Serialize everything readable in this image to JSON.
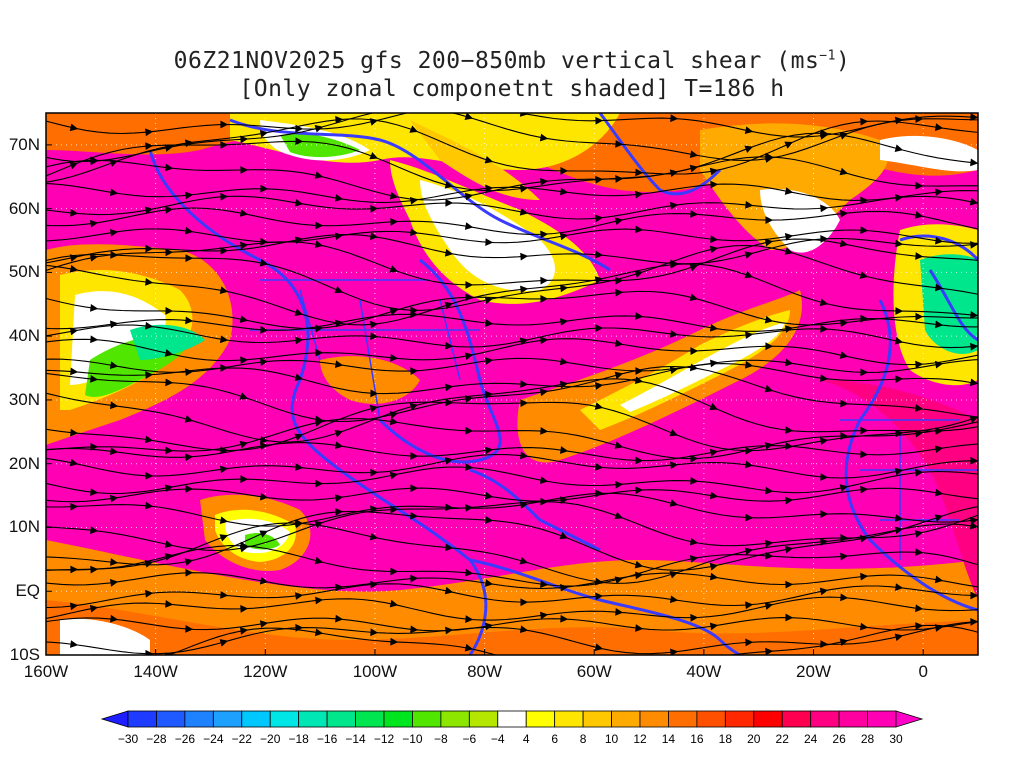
{
  "title": {
    "line1": "06Z21NOV2025 gfs 200−850mb vertical shear (ms",
    "line1_sup": "−1",
    "line1_end": ")",
    "line2": "[Only zonal componetnt shaded] T=186 h"
  },
  "map": {
    "lon_range": [
      -160,
      10
    ],
    "lat_range": [
      -10,
      75
    ],
    "lat_labels": [
      "70N",
      "60N",
      "50N",
      "40N",
      "30N",
      "20N",
      "10N",
      "EQ",
      "10S"
    ],
    "lat_values": [
      70,
      60,
      50,
      40,
      30,
      20,
      10,
      0,
      -10
    ],
    "lon_labels": [
      "160W",
      "140W",
      "120W",
      "100W",
      "80W",
      "60W",
      "40W",
      "20W",
      "0"
    ],
    "lon_values": [
      -160,
      -140,
      -120,
      -100,
      -80,
      -60,
      -40,
      -20,
      0
    ],
    "gridlines": "dotted",
    "overlays": [
      "streamlines",
      "coastlines",
      "country-borders"
    ],
    "coastline_color": "#3b3bff",
    "streamline_color": "#000000"
  },
  "colorbar": {
    "labels": [
      "−30",
      "−28",
      "−26",
      "−24",
      "−22",
      "−20",
      "−18",
      "−16",
      "−14",
      "−12",
      "−10",
      "−8",
      "−6",
      "−4",
      "4",
      "6",
      "8",
      "10",
      "12",
      "14",
      "16",
      "18",
      "20",
      "22",
      "24",
      "26",
      "28",
      "30"
    ],
    "colors": [
      "#1e1eff",
      "#1e3cff",
      "#1e5aff",
      "#1e82ff",
      "#1ea0ff",
      "#00c8ff",
      "#00e6e6",
      "#00e6b4",
      "#00e68c",
      "#00e650",
      "#00e61e",
      "#50e600",
      "#8ce600",
      "#b4e600",
      "#ffffff",
      "#ffff00",
      "#ffe600",
      "#ffc800",
      "#ffaa00",
      "#ff8c00",
      "#ff6e00",
      "#ff5000",
      "#ff2800",
      "#ff0000",
      "#ff0050",
      "#ff0082",
      "#ff00a0",
      "#ff00b4",
      "#ff00c8"
    ]
  }
}
